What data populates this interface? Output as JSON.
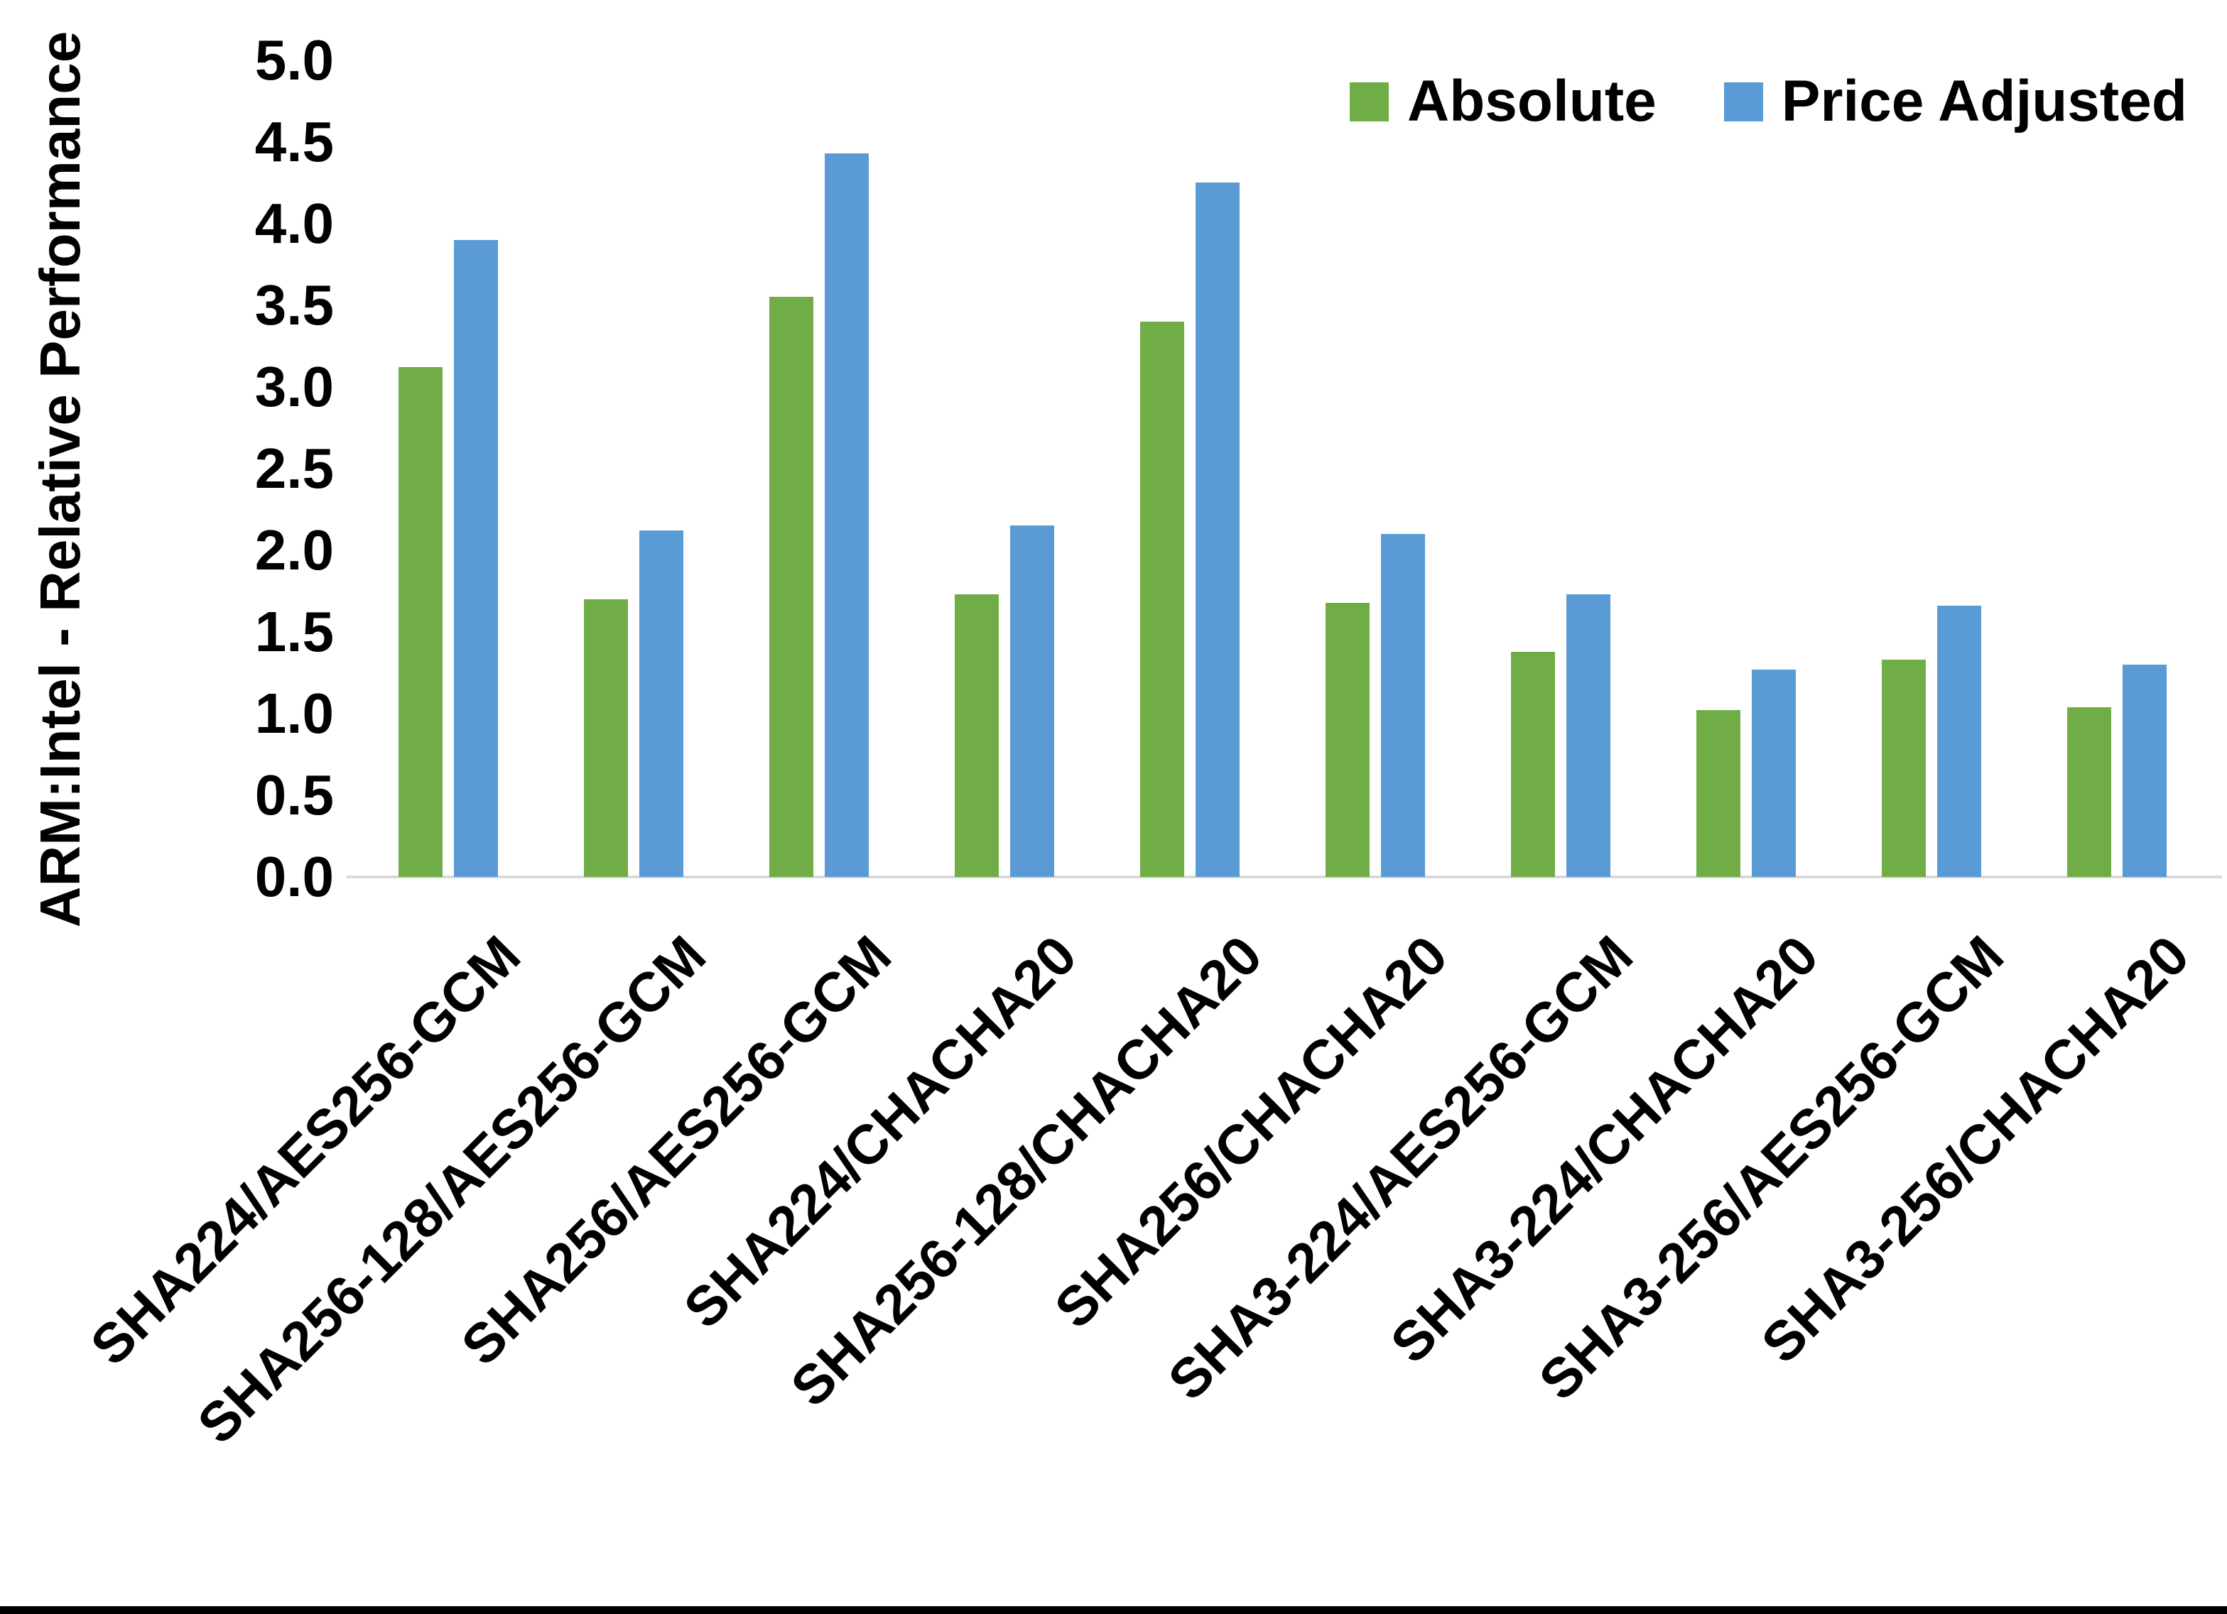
{
  "chart_data": {
    "type": "bar",
    "title": "",
    "ylabel": "ARM:Intel - Relative Performance",
    "xlabel": "",
    "ylim": [
      0.0,
      5.0
    ],
    "ytick_step": 0.5,
    "ytick_labels": [
      "0.0",
      "0.5",
      "1.0",
      "1.5",
      "2.0",
      "2.5",
      "3.0",
      "3.5",
      "4.0",
      "4.5",
      "5.0"
    ],
    "grid": false,
    "legend_position": "top-right",
    "categories": [
      "SHA224/AES256-GCM",
      "SHA256-128/AES256-GCM",
      "SHA256/AES256-GCM",
      "SHA224/CHACHA20",
      "SHA256-128/CHACHA20",
      "SHA256/CHACHA20",
      "SHA3-224/AES256-GCM",
      "SHA3-224/CHACHA20",
      "SHA3-256/AES256-GCM",
      "SHA3-256/CHACHA20"
    ],
    "series": [
      {
        "name": "Absolute",
        "color": "#70AD47",
        "values": [
          3.12,
          1.7,
          3.55,
          1.73,
          3.4,
          1.68,
          1.38,
          1.02,
          1.33,
          1.04
        ]
      },
      {
        "name": "Price Adjusted",
        "color": "#5B9BD5",
        "values": [
          3.9,
          2.12,
          4.43,
          2.15,
          4.25,
          2.1,
          1.73,
          1.27,
          1.66,
          1.3
        ]
      }
    ],
    "axis_color": "#D9D9D9",
    "text_color": "#000000",
    "background_color": "#FFFFFF"
  }
}
